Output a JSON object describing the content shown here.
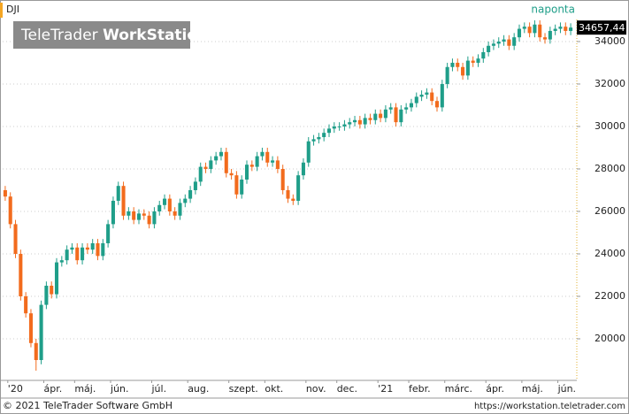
{
  "chart_data": {
    "type": "candlestick",
    "symbol": "DJI",
    "interval": "naponta",
    "watermark": {
      "brand": "TeleTrader",
      "product": "WorkStation"
    },
    "footer": {
      "copyright": "© 2021 TeleTrader Software GmbH",
      "url": "https://workstation.teletrader.com"
    },
    "last_value": {
      "value": 34657.44,
      "label": "34657,44"
    },
    "up_color": "#1f9e89",
    "down_color": "#f26b1d",
    "grid": true,
    "ylim": [
      18125,
      35040
    ],
    "yticks": [
      20000,
      22000,
      24000,
      26000,
      28000,
      30000,
      32000,
      34000
    ],
    "categories": [
      null,
      "'20",
      null,
      null,
      null,
      null,
      null,
      null,
      "ápr.",
      null,
      null,
      null,
      null,
      null,
      "máj.",
      null,
      null,
      null,
      null,
      null,
      null,
      "jún.",
      null,
      null,
      null,
      null,
      null,
      null,
      null,
      "júl.",
      null,
      null,
      null,
      null,
      null,
      null,
      "aug.",
      null,
      null,
      null,
      null,
      null,
      null,
      null,
      "szept.",
      null,
      null,
      null,
      null,
      null,
      null,
      "okt.",
      null,
      null,
      null,
      null,
      null,
      null,
      null,
      "nov.",
      null,
      null,
      null,
      null,
      null,
      "dec.",
      null,
      null,
      null,
      null,
      null,
      null,
      null,
      "'21",
      null,
      null,
      null,
      null,
      null,
      "febr.",
      null,
      null,
      null,
      null,
      null,
      null,
      "márc.",
      null,
      null,
      null,
      null,
      null,
      null,
      null,
      "ápr.",
      null,
      null,
      null,
      null,
      null,
      null,
      "máj.",
      null,
      null,
      null,
      null,
      null,
      null,
      "jún.",
      null,
      null
    ],
    "open": [
      27000,
      26700,
      25400,
      24000,
      22000,
      21200,
      19800,
      19000,
      21600,
      22500,
      22100,
      23600,
      23700,
      24200,
      24300,
      23700,
      24300,
      24200,
      24500,
      23900,
      24500,
      25400,
      26500,
      27200,
      25800,
      26000,
      25600,
      25900,
      25800,
      25400,
      26000,
      26300,
      26600,
      26000,
      25800,
      26400,
      26600,
      27000,
      27400,
      28100,
      28000,
      28400,
      28600,
      28800,
      27800,
      27700,
      26800,
      27500,
      28200,
      28100,
      28600,
      28800,
      28300,
      28400,
      28000,
      27000,
      26600,
      26500,
      27700,
      28300,
      29300,
      29400,
      29500,
      29700,
      29900,
      30000,
      30000,
      30100,
      30200,
      30300,
      30100,
      30400,
      30300,
      30600,
      30400,
      30800,
      30900,
      30200,
      30800,
      30900,
      31100,
      31400,
      31500,
      31600,
      31200,
      30900,
      32000,
      32800,
      33000,
      32800,
      32400,
      33100,
      33000,
      33200,
      33500,
      33800,
      33900,
      34000,
      34100,
      33800,
      34200,
      34600,
      34700,
      34400,
      34800,
      34200,
      34100,
      34500,
      34600,
      34700,
      34500
    ],
    "high": [
      27200,
      26900,
      25600,
      24200,
      22200,
      21400,
      20000,
      21800,
      22700,
      22700,
      23800,
      23900,
      24400,
      24500,
      24500,
      24500,
      24500,
      24700,
      24700,
      24700,
      25600,
      26700,
      27400,
      27400,
      26200,
      26200,
      26100,
      26100,
      26000,
      26200,
      26500,
      26800,
      26800,
      26200,
      26600,
      26800,
      27200,
      27600,
      28300,
      28300,
      28600,
      28800,
      29000,
      29000,
      28000,
      27900,
      27700,
      28400,
      28400,
      28800,
      29000,
      29000,
      28600,
      28600,
      28200,
      27200,
      26800,
      27900,
      28500,
      29500,
      29600,
      29700,
      29900,
      30100,
      30200,
      30200,
      30300,
      30400,
      30500,
      30500,
      30600,
      30600,
      30800,
      30800,
      31000,
      31100,
      31100,
      31000,
      31100,
      31300,
      31600,
      31700,
      31800,
      31800,
      31400,
      32200,
      33000,
      33200,
      33200,
      33000,
      33300,
      33300,
      33400,
      33700,
      34000,
      34100,
      34200,
      34300,
      34300,
      34400,
      34800,
      34900,
      34900,
      35000,
      35000,
      34400,
      34700,
      34800,
      34900,
      34900,
      34860
    ],
    "low": [
      26500,
      25200,
      23800,
      21800,
      21000,
      19600,
      18500,
      18800,
      21400,
      21900,
      21900,
      23400,
      23500,
      24000,
      23500,
      23500,
      24000,
      24000,
      23700,
      23700,
      24300,
      25200,
      26300,
      25600,
      25600,
      25400,
      25400,
      25600,
      25200,
      25200,
      25800,
      26100,
      25800,
      25600,
      25600,
      26200,
      26400,
      26800,
      27200,
      27800,
      27800,
      28200,
      28400,
      27600,
      27500,
      26600,
      26600,
      27300,
      27900,
      27900,
      28400,
      28100,
      28100,
      27800,
      26800,
      26400,
      26300,
      26300,
      27500,
      28100,
      29100,
      29200,
      29300,
      29500,
      29700,
      29800,
      29800,
      29900,
      30000,
      29900,
      29900,
      30100,
      30100,
      30200,
      30200,
      30600,
      30000,
      30000,
      30600,
      30700,
      30900,
      31200,
      31300,
      31000,
      30700,
      30700,
      31800,
      32600,
      32600,
      32200,
      32200,
      32800,
      32800,
      33000,
      33300,
      33600,
      33700,
      33800,
      33600,
      33600,
      34000,
      34400,
      34200,
      34200,
      34000,
      33900,
      33900,
      34300,
      34400,
      34300,
      34300
    ],
    "close": [
      26700,
      25400,
      24000,
      22000,
      21200,
      19800,
      19000,
      21600,
      22500,
      22100,
      23600,
      23700,
      24200,
      24300,
      23700,
      24300,
      24200,
      24500,
      23900,
      24500,
      25400,
      26500,
      27200,
      25800,
      26000,
      25600,
      25900,
      25800,
      25400,
      26000,
      26300,
      26600,
      26000,
      25800,
      26400,
      26600,
      27000,
      27400,
      28100,
      28000,
      28400,
      28600,
      28800,
      27800,
      27700,
      26800,
      27500,
      28200,
      28100,
      28600,
      28800,
      28300,
      28400,
      28000,
      27000,
      26600,
      26500,
      27700,
      28300,
      29300,
      29400,
      29500,
      29700,
      29900,
      30000,
      30000,
      30100,
      30200,
      30300,
      30100,
      30400,
      30300,
      30600,
      30400,
      30800,
      30900,
      30200,
      30800,
      30900,
      31100,
      31400,
      31500,
      31600,
      31200,
      30900,
      32000,
      32800,
      33000,
      32800,
      32400,
      33100,
      33000,
      33200,
      33500,
      33800,
      33900,
      34000,
      34100,
      33800,
      34200,
      34600,
      34700,
      34400,
      34800,
      34200,
      34100,
      34500,
      34600,
      34700,
      34500,
      34657.44
    ]
  }
}
